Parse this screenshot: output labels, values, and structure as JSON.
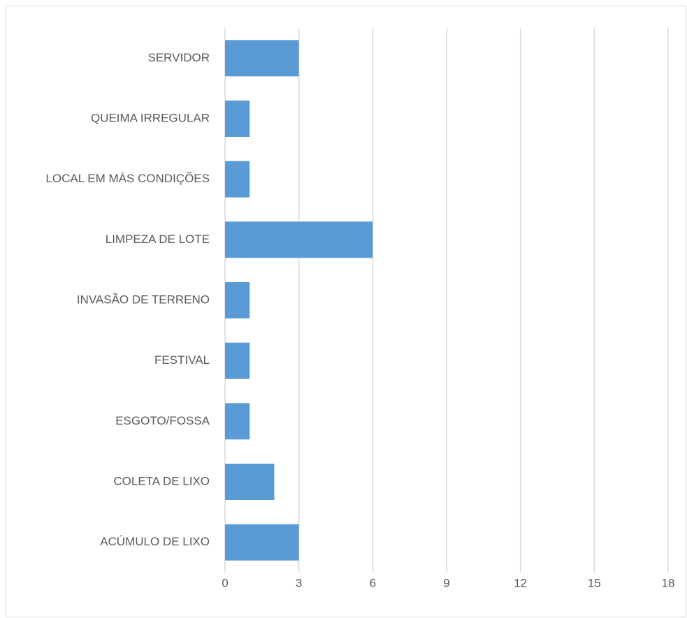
{
  "chart_data": {
    "type": "barh",
    "categories": [
      "SERVIDOR",
      "QUEIMA IRREGULAR",
      "LOCAL EM MÁS CONDIÇÕES",
      "LIMPEZA DE LOTE",
      "INVASÃO DE TERRENO",
      "FESTIVAL",
      "ESGOTO/FOSSA",
      "COLETA DE LIXO",
      "ACÚMULO DE LIXO"
    ],
    "values": [
      3,
      1,
      1,
      6,
      1,
      1,
      1,
      2,
      3
    ],
    "color": "#5b9bd5",
    "xlim": [
      0,
      18
    ],
    "xticks": [
      0,
      3,
      6,
      9,
      12,
      15,
      18
    ],
    "grid": true
  }
}
